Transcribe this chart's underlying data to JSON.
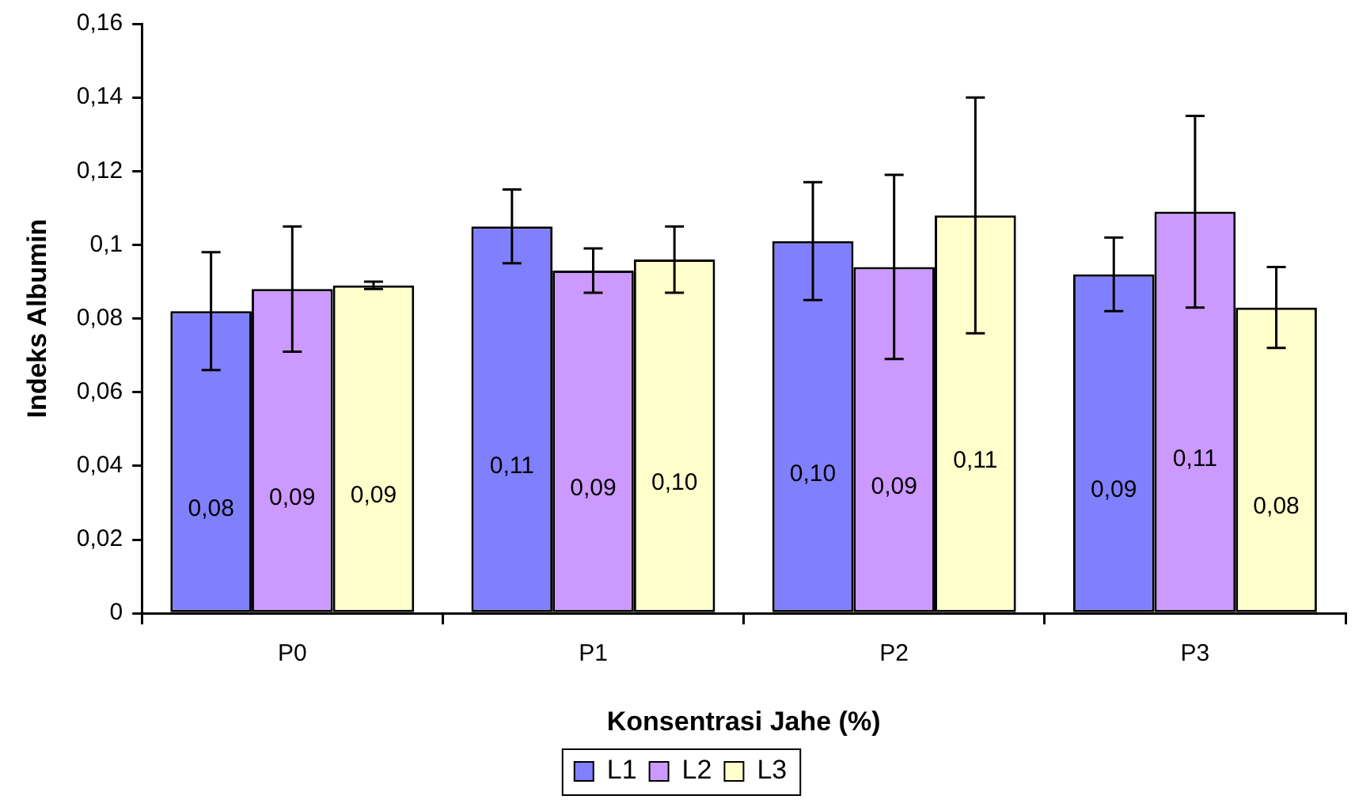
{
  "chart_data": {
    "type": "bar",
    "xlabel": "Konsentrasi Jahe (%)",
    "ylabel": "Indeks Albumin",
    "categories": [
      "P0",
      "P1",
      "P2",
      "P3"
    ],
    "series": [
      {
        "name": "L1",
        "color": "#8080ff",
        "values": [
          0.082,
          0.105,
          0.101,
          0.092
        ],
        "errors": [
          0.016,
          0.01,
          0.016,
          0.01
        ],
        "value_labels": [
          "0,08",
          "0,11",
          "0,10",
          "0,09"
        ]
      },
      {
        "name": "L2",
        "color": "#cc99ff",
        "values": [
          0.088,
          0.093,
          0.094,
          0.109
        ],
        "errors": [
          0.017,
          0.006,
          0.025,
          0.026
        ],
        "value_labels": [
          "0,09",
          "0,09",
          "0,09",
          "0,11"
        ]
      },
      {
        "name": "L3",
        "color": "#ffffcc",
        "values": [
          0.089,
          0.096,
          0.108,
          0.083
        ],
        "errors": [
          0.001,
          0.009,
          0.032,
          0.011
        ],
        "value_labels": [
          "0,09",
          "0,10",
          "0,11",
          "0,08"
        ]
      }
    ],
    "ylim": [
      0,
      0.16
    ],
    "yticks": [
      0,
      {
        "value": 0.02,
        "label": "0,02"
      },
      {
        "value": 0.04,
        "label": "0,04"
      },
      {
        "value": 0.06,
        "label": "0,06"
      },
      {
        "value": 0.08,
        "label": "0,08"
      },
      {
        "value": 0.1,
        "label": "0,1"
      },
      {
        "value": 0.12,
        "label": "0,12"
      },
      {
        "value": 0.14,
        "label": "0,14"
      },
      {
        "value": 0.16,
        "label": "0,16"
      }
    ],
    "grid": false,
    "legend": "bottom"
  }
}
